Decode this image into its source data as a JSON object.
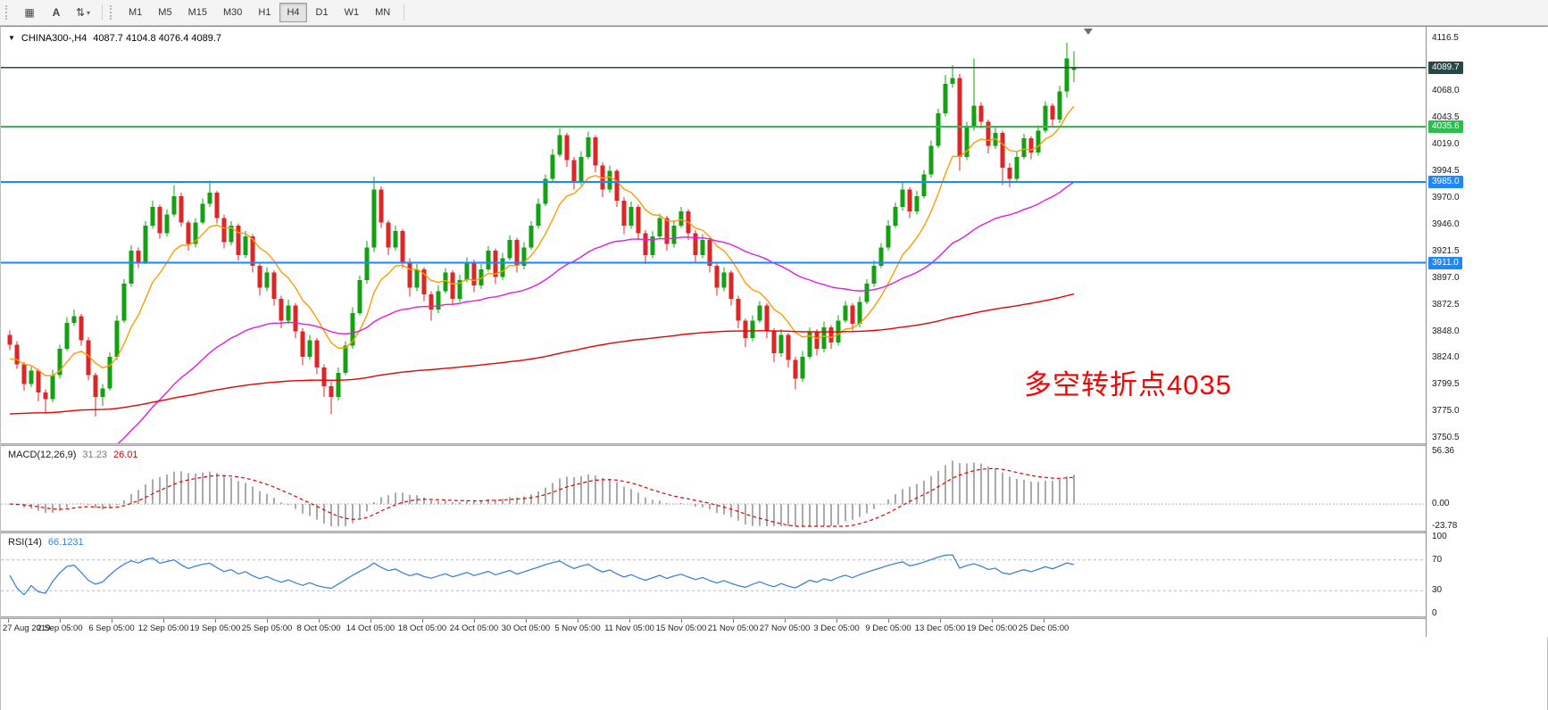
{
  "toolbar": {
    "tools": [
      {
        "name": "chart-grid",
        "glyph": "▦",
        "caret": ""
      },
      {
        "name": "text-annotate",
        "glyph": "A",
        "caret": ""
      },
      {
        "name": "line-studies",
        "glyph": "⇅",
        "caret": "▾"
      }
    ],
    "timeframes": [
      "M1",
      "M5",
      "M15",
      "M30",
      "H1",
      "H4",
      "D1",
      "W1",
      "MN"
    ],
    "active_timeframe": "H4"
  },
  "chart": {
    "header": {
      "dropdown_icon": "▼",
      "symbol": "CHINA300-,H4",
      "ohlc": "4087.7 4104.8 4076.4 4089.7"
    },
    "annotation": {
      "text": "多空转折点4035",
      "color": "#ff0000"
    },
    "price_scale": {
      "labels": [
        "4116.5",
        "4068.0",
        "4043.5",
        "4019.0",
        "3994.5",
        "3970.0",
        "3946.0",
        "3921.5",
        "3897.0",
        "3872.5",
        "3848.0",
        "3824.0",
        "3799.5",
        "3775.0",
        "3750.5"
      ]
    },
    "badges": [
      {
        "text": "4089.7",
        "price": 4089.7,
        "color": "#2b4646"
      },
      {
        "text": "4035.6",
        "price": 4035.6,
        "color": "#2ebd4e"
      },
      {
        "text": "3985.0",
        "price": 3985.0,
        "color": "#1e86ff"
      },
      {
        "text": "3911.0",
        "price": 3911.0,
        "color": "#1e86ff"
      }
    ]
  },
  "macd": {
    "label": "MACD(12,26,9)",
    "value_main": "31.23",
    "value_signal": "26.01",
    "scale": [
      "56.36",
      "0.00",
      "-23.78"
    ],
    "range": {
      "max": 56.36,
      "min": -23.78
    },
    "colors": {
      "histogram": "#ababab",
      "signal": "#e60000",
      "zero_line": "#b5b5b5"
    }
  },
  "rsi": {
    "label": "RSI(14)",
    "value": "66.1231",
    "scale": [
      "100",
      "70",
      "30",
      "0"
    ],
    "levels": [
      70,
      30
    ],
    "colors": {
      "line": "#3e82d8",
      "level": "#a9bcd6"
    }
  },
  "time_axis": {
    "labels": [
      "27 Aug 2019",
      "2 Sep 05:00",
      "6 Sep 05:00",
      "12 Sep 05:00",
      "19 Sep 05:00",
      "25 Sep 05:00",
      "8 Oct 05:00",
      "14 Oct 05:00",
      "18 Oct 05:00",
      "24 Oct 05:00",
      "30 Oct 05:00",
      "5 Nov 05:00",
      "11 Nov 05:00",
      "15 Nov 05:00",
      "21 Nov 05:00",
      "27 Nov 05:00",
      "3 Dec 05:00",
      "9 Dec 05:00",
      "13 Dec 05:00",
      "19 Dec 05:00",
      "25 Dec 05:00"
    ]
  },
  "chart_data": {
    "type": "candlestick",
    "title": "CHINA300-,H4",
    "symbol": "CHINA300-",
    "timeframe": "H4",
    "ohlc_current": {
      "open": 4087.7,
      "high": 4104.8,
      "low": 4076.4,
      "close": 4089.7
    },
    "price_axis": {
      "top": 4116.5,
      "bottom": 3750.5,
      "tick_step": 24.5
    },
    "up_color": "#12a112",
    "down_color": "#e02525",
    "candles": [
      [
        3845,
        3849,
        3831,
        3836
      ],
      [
        3836,
        3839,
        3814,
        3818
      ],
      [
        3818,
        3820,
        3794,
        3800
      ],
      [
        3800,
        3816,
        3797,
        3812
      ],
      [
        3812,
        3814,
        3784,
        3792
      ],
      [
        3792,
        3795,
        3773,
        3786
      ],
      [
        3786,
        3813,
        3783,
        3808
      ],
      [
        3808,
        3836,
        3805,
        3832
      ],
      [
        3832,
        3861,
        3830,
        3856
      ],
      [
        3856,
        3868,
        3853,
        3862
      ],
      [
        3862,
        3864,
        3835,
        3840
      ],
      [
        3840,
        3843,
        3803,
        3808
      ],
      [
        3808,
        3810,
        3770,
        3788
      ],
      [
        3788,
        3800,
        3780,
        3796
      ],
      [
        3796,
        3829,
        3794,
        3825
      ],
      [
        3825,
        3863,
        3822,
        3858
      ],
      [
        3858,
        3896,
        3856,
        3892
      ],
      [
        3892,
        3927,
        3889,
        3922
      ],
      [
        3922,
        3925,
        3906,
        3912
      ],
      [
        3912,
        3949,
        3910,
        3945
      ],
      [
        3945,
        3968,
        3942,
        3962
      ],
      [
        3962,
        3964,
        3933,
        3938
      ],
      [
        3938,
        3960,
        3935,
        3955
      ],
      [
        3955,
        3982,
        3953,
        3972
      ],
      [
        3972,
        3975,
        3944,
        3948
      ],
      [
        3948,
        3950,
        3922,
        3928
      ],
      [
        3928,
        3952,
        3925,
        3948
      ],
      [
        3948,
        3970,
        3946,
        3965
      ],
      [
        3965,
        3986,
        3962,
        3975
      ],
      [
        3975,
        3977,
        3947,
        3952
      ],
      [
        3952,
        3955,
        3924,
        3930
      ],
      [
        3930,
        3949,
        3927,
        3945
      ],
      [
        3945,
        3947,
        3913,
        3918
      ],
      [
        3918,
        3940,
        3915,
        3935
      ],
      [
        3935,
        3937,
        3902,
        3908
      ],
      [
        3908,
        3911,
        3881,
        3888
      ],
      [
        3888,
        3907,
        3885,
        3902
      ],
      [
        3902,
        3904,
        3872,
        3878
      ],
      [
        3878,
        3881,
        3851,
        3858
      ],
      [
        3858,
        3877,
        3855,
        3872
      ],
      [
        3872,
        3874,
        3842,
        3848
      ],
      [
        3848,
        3851,
        3817,
        3825
      ],
      [
        3825,
        3845,
        3822,
        3840
      ],
      [
        3840,
        3842,
        3809,
        3815
      ],
      [
        3815,
        3818,
        3788,
        3798
      ],
      [
        3798,
        3802,
        3772,
        3788
      ],
      [
        3788,
        3815,
        3785,
        3810
      ],
      [
        3810,
        3839,
        3808,
        3835
      ],
      [
        3835,
        3870,
        3832,
        3865
      ],
      [
        3865,
        3899,
        3863,
        3895
      ],
      [
        3895,
        3931,
        3892,
        3925
      ],
      [
        3925,
        3990,
        3921,
        3978
      ],
      [
        3978,
        3981,
        3943,
        3948
      ],
      [
        3948,
        3950,
        3918,
        3925
      ],
      [
        3925,
        3945,
        3922,
        3940
      ],
      [
        3940,
        3942,
        3906,
        3912
      ],
      [
        3912,
        3915,
        3880,
        3888
      ],
      [
        3888,
        3910,
        3885,
        3905
      ],
      [
        3905,
        3907,
        3876,
        3882
      ],
      [
        3882,
        3885,
        3858,
        3868
      ],
      [
        3868,
        3890,
        3865,
        3885
      ],
      [
        3885,
        3906,
        3883,
        3902
      ],
      [
        3902,
        3904,
        3872,
        3878
      ],
      [
        3878,
        3900,
        3875,
        3895
      ],
      [
        3895,
        3916,
        3893,
        3912
      ],
      [
        3912,
        3914,
        3884,
        3890
      ],
      [
        3890,
        3910,
        3887,
        3905
      ],
      [
        3905,
        3926,
        3903,
        3922
      ],
      [
        3922,
        3924,
        3892,
        3898
      ],
      [
        3898,
        3920,
        3895,
        3915
      ],
      [
        3915,
        3936,
        3913,
        3932
      ],
      [
        3932,
        3934,
        3902,
        3908
      ],
      [
        3908,
        3930,
        3905,
        3925
      ],
      [
        3925,
        3949,
        3923,
        3945
      ],
      [
        3945,
        3970,
        3942,
        3965
      ],
      [
        3965,
        3992,
        3963,
        3988
      ],
      [
        3988,
        4015,
        3985,
        4010
      ],
      [
        4010,
        4034,
        4008,
        4028
      ],
      [
        4028,
        4030,
        3999,
        4005
      ],
      [
        4005,
        4008,
        3978,
        3985
      ],
      [
        3985,
        4013,
        3982,
        4008
      ],
      [
        4008,
        4031,
        4006,
        4026
      ],
      [
        4026,
        4028,
        3994,
        4000
      ],
      [
        4000,
        4003,
        3971,
        3978
      ],
      [
        3978,
        4000,
        3975,
        3995
      ],
      [
        3995,
        3997,
        3962,
        3968
      ],
      [
        3968,
        3971,
        3937,
        3945
      ],
      [
        3945,
        3967,
        3942,
        3962
      ],
      [
        3962,
        3964,
        3932,
        3938
      ],
      [
        3938,
        3941,
        3910,
        3918
      ],
      [
        3918,
        3940,
        3915,
        3935
      ],
      [
        3935,
        3956,
        3933,
        3952
      ],
      [
        3952,
        3954,
        3922,
        3928
      ],
      [
        3928,
        3950,
        3925,
        3945
      ],
      [
        3945,
        3962,
        3943,
        3958
      ],
      [
        3958,
        3960,
        3932,
        3938
      ],
      [
        3938,
        3941,
        3911,
        3918
      ],
      [
        3918,
        3937,
        3915,
        3932
      ],
      [
        3932,
        3934,
        3902,
        3908
      ],
      [
        3908,
        3911,
        3881,
        3888
      ],
      [
        3888,
        3907,
        3885,
        3902
      ],
      [
        3902,
        3904,
        3872,
        3878
      ],
      [
        3878,
        3881,
        3851,
        3858
      ],
      [
        3858,
        3860,
        3834,
        3842
      ],
      [
        3842,
        3863,
        3839,
        3858
      ],
      [
        3858,
        3876,
        3856,
        3872
      ],
      [
        3872,
        3874,
        3842,
        3848
      ],
      [
        3848,
        3851,
        3820,
        3828
      ],
      [
        3828,
        3850,
        3825,
        3845
      ],
      [
        3845,
        3847,
        3815,
        3822
      ],
      [
        3822,
        3825,
        3795,
        3805
      ],
      [
        3805,
        3830,
        3802,
        3825
      ],
      [
        3825,
        3852,
        3823,
        3848
      ],
      [
        3848,
        3850,
        3826,
        3832
      ],
      [
        3832,
        3857,
        3829,
        3852
      ],
      [
        3852,
        3854,
        3832,
        3838
      ],
      [
        3838,
        3863,
        3835,
        3858
      ],
      [
        3858,
        3876,
        3856,
        3872
      ],
      [
        3872,
        3874,
        3849,
        3855
      ],
      [
        3855,
        3880,
        3852,
        3875
      ],
      [
        3875,
        3896,
        3873,
        3892
      ],
      [
        3892,
        3913,
        3889,
        3908
      ],
      [
        3908,
        3929,
        3906,
        3925
      ],
      [
        3925,
        3950,
        3922,
        3945
      ],
      [
        3945,
        3966,
        3943,
        3962
      ],
      [
        3962,
        3984,
        3959,
        3978
      ],
      [
        3978,
        3980,
        3952,
        3958
      ],
      [
        3958,
        3977,
        3955,
        3972
      ],
      [
        3972,
        3996,
        3970,
        3992
      ],
      [
        3992,
        4023,
        3989,
        4018
      ],
      [
        4018,
        4052,
        4016,
        4048
      ],
      [
        4048,
        4083,
        4045,
        4075
      ],
      [
        4075,
        4092,
        4071,
        4080
      ],
      [
        4080,
        4084,
        3995,
        4008
      ],
      [
        4008,
        4040,
        4005,
        4035
      ],
      [
        4035,
        4098,
        4032,
        4055
      ],
      [
        4055,
        4058,
        4034,
        4040
      ],
      [
        4040,
        4042,
        4011,
        4018
      ],
      [
        4018,
        4035,
        4015,
        4030
      ],
      [
        4030,
        4032,
        3982,
        3998
      ],
      [
        3998,
        4002,
        3980,
        3988
      ],
      [
        3988,
        4013,
        3985,
        4008
      ],
      [
        4008,
        4029,
        4006,
        4025
      ],
      [
        4025,
        4027,
        4006,
        4012
      ],
      [
        4012,
        4037,
        4009,
        4032
      ],
      [
        4032,
        4059,
        4030,
        4055
      ],
      [
        4055,
        4057,
        4036,
        4042
      ],
      [
        4042,
        4073,
        4039,
        4068
      ],
      [
        4068,
        4112.5,
        4062,
        4098
      ],
      [
        4087.7,
        4104.8,
        4076.4,
        4089.7
      ]
    ],
    "moving_averages": [
      {
        "name": "ma-fast",
        "color": "#ff9c00",
        "period": 10,
        "seed": 3820
      },
      {
        "name": "ma-mid",
        "color": "#e619e6",
        "period": 48,
        "seed": 3672
      },
      {
        "name": "ma-slow",
        "color": "#e60000",
        "period": 260,
        "seed": 3772
      }
    ],
    "hlines": [
      {
        "price": 4035.6,
        "color": "#2ebd4e"
      },
      {
        "price": 3985.0,
        "color": "#1e86ff"
      },
      {
        "price": 3911.0,
        "color": "#1e86ff"
      }
    ],
    "current_price_line": {
      "price": 4089.7,
      "color": "#2b4646"
    },
    "indicators": [
      {
        "type": "MACD",
        "params": [
          12,
          26,
          9
        ],
        "current": [
          31.23,
          26.01
        ]
      },
      {
        "type": "RSI",
        "params": [
          14
        ],
        "current": 66.1231
      }
    ],
    "x_labels": [
      "27 Aug 2019",
      "2 Sep 05:00",
      "6 Sep 05:00",
      "12 Sep 05:00",
      "19 Sep 05:00",
      "25 Sep 05:00",
      "8 Oct 05:00",
      "14 Oct 05:00",
      "18 Oct 05:00",
      "24 Oct 05:00",
      "30 Oct 05:00",
      "5 Nov 05:00",
      "11 Nov 05:00",
      "15 Nov 05:00",
      "21 Nov 05:00",
      "27 Nov 05:00",
      "3 Dec 05:00",
      "9 Dec 05:00",
      "13 Dec 05:00",
      "19 Dec 05:00",
      "25 Dec 05:00"
    ]
  }
}
